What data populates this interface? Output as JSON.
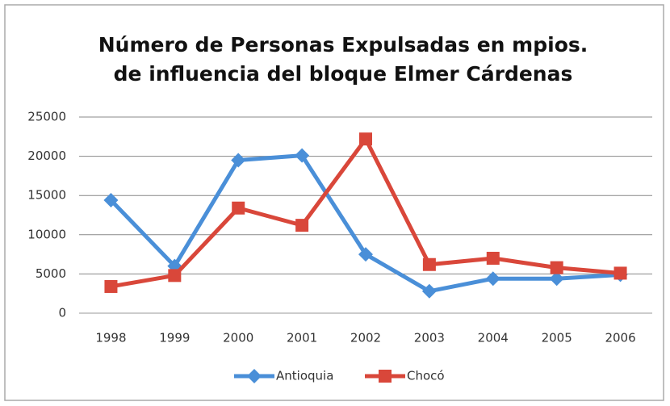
{
  "chart_data": {
    "type": "line",
    "title": "Número de Personas Expulsadas en mpios. de influencia del bloque Elmer Cárdenas",
    "categories": [
      "1998",
      "1999",
      "2000",
      "2001",
      "2002",
      "2003",
      "2004",
      "2005",
      "2006"
    ],
    "series": [
      {
        "name": "Antioquia",
        "color": "#4a8fd8",
        "values": [
          14400,
          6000,
          19500,
          20100,
          7500,
          2800,
          4400,
          4400,
          4900
        ]
      },
      {
        "name": "Chocó",
        "color": "#d9473a",
        "values": [
          3400,
          4800,
          13400,
          11200,
          22200,
          6200,
          7000,
          5800,
          5100
        ]
      }
    ],
    "ylim": [
      0,
      25000
    ],
    "yticks": [
      0,
      5000,
      10000,
      15000,
      20000,
      25000
    ],
    "grid": true,
    "legend": "bottom"
  }
}
